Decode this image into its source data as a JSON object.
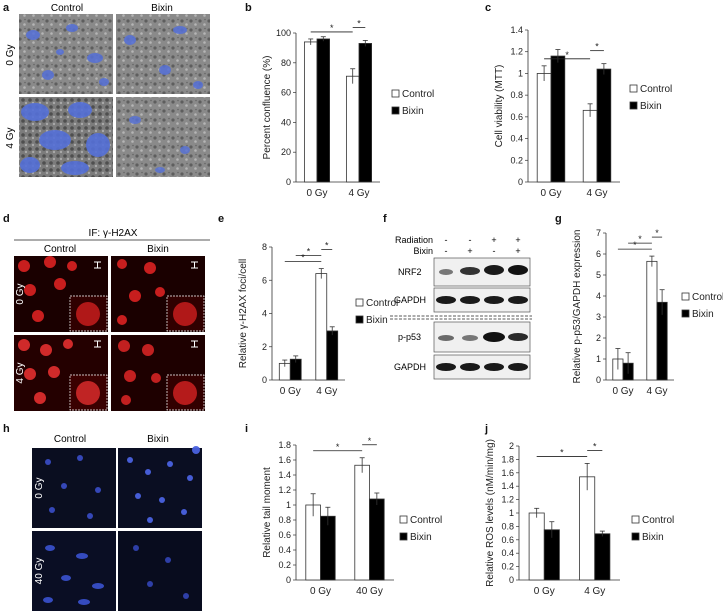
{
  "panel_letters": [
    "a",
    "b",
    "c",
    "d",
    "e",
    "f",
    "g",
    "h",
    "i",
    "j"
  ],
  "micrographs": {
    "a": {
      "col_labels": [
        "Control",
        "Bixin"
      ],
      "row_labels": [
        "0 Gy",
        "4 Gy"
      ]
    },
    "d": {
      "title": "IF: γ-H2AX",
      "col_labels": [
        "Control",
        "Bixin"
      ],
      "row_labels": [
        "0 Gy",
        "4 Gy"
      ]
    },
    "h": {
      "col_labels": [
        "Control",
        "Bixin"
      ],
      "row_labels": [
        "0 Gy",
        "40 Gy"
      ]
    }
  },
  "western_blot": {
    "header_labels": [
      "Radiation",
      "Bixin"
    ],
    "radiation_signs": [
      "-",
      "-",
      "+",
      "+"
    ],
    "bixin_signs": [
      "-",
      "+",
      "-",
      "+"
    ],
    "bands": [
      "NRF2",
      "GAPDH",
      "p-p53",
      "GAPDH"
    ]
  },
  "colors": {
    "control": "#ffffff",
    "bixin": "#000000",
    "stroke": "#333333",
    "overlay_blue": "#5570d8"
  },
  "chart_data": [
    {
      "panel": "b",
      "type": "bar",
      "categories": [
        "0 Gy",
        "4 Gy"
      ],
      "series": [
        {
          "name": "Control",
          "values": [
            94,
            71
          ],
          "errors": [
            2,
            5
          ]
        },
        {
          "name": "Bixin",
          "values": [
            96,
            93
          ],
          "errors": [
            1.5,
            2
          ]
        }
      ],
      "ylabel": "Percent confluence (%)",
      "ylim": [
        0,
        100
      ],
      "yticks": [
        "0",
        "20",
        "40",
        "60",
        "80",
        "100"
      ],
      "significance": [
        {
          "from": [
            0,
            0
          ],
          "to": [
            1,
            0
          ],
          "label": "*"
        },
        {
          "from": [
            1,
            0
          ],
          "to": [
            1,
            1
          ],
          "label": "*"
        }
      ],
      "legend": "right"
    },
    {
      "panel": "c",
      "type": "bar",
      "categories": [
        "0 Gy",
        "4 Gy"
      ],
      "series": [
        {
          "name": "Control",
          "values": [
            1.0,
            0.66
          ],
          "errors": [
            0.07,
            0.06
          ]
        },
        {
          "name": "Bixin",
          "values": [
            1.16,
            1.04
          ],
          "errors": [
            0.06,
            0.05
          ]
        }
      ],
      "ylabel": "Cell viability (MTT)",
      "ylim": [
        0,
        1.4
      ],
      "yticks": [
        "0",
        "0.2",
        "0.4",
        "0.6",
        "0.8",
        "1",
        "1.2",
        "1.4"
      ],
      "significance": [
        {
          "from": [
            0,
            0
          ],
          "to": [
            1,
            0
          ],
          "label": "*"
        },
        {
          "from": [
            1,
            0
          ],
          "to": [
            1,
            1
          ],
          "label": "*"
        }
      ],
      "legend": "right"
    },
    {
      "panel": "e",
      "type": "bar",
      "categories": [
        "0 Gy",
        "4 Gy"
      ],
      "series": [
        {
          "name": "Control",
          "values": [
            1.0,
            6.4
          ],
          "errors": [
            0.2,
            0.3
          ]
        },
        {
          "name": "Bixin",
          "values": [
            1.25,
            2.95
          ],
          "errors": [
            0.2,
            0.25
          ]
        }
      ],
      "ylabel": "Relative γ-H2AX foci/cell",
      "ylim": [
        0,
        8
      ],
      "yticks": [
        "0",
        "2",
        "4",
        "6",
        "8"
      ],
      "significance": [
        {
          "from": [
            0,
            0
          ],
          "to": [
            1,
            0
          ],
          "label": "*"
        },
        {
          "from": [
            0,
            1
          ],
          "to": [
            1,
            0
          ],
          "label": "*"
        },
        {
          "from": [
            1,
            0
          ],
          "to": [
            1,
            1
          ],
          "label": "*"
        }
      ],
      "legend": "right"
    },
    {
      "panel": "g",
      "type": "bar",
      "categories": [
        "0 Gy",
        "4 Gy"
      ],
      "series": [
        {
          "name": "Control",
          "values": [
            1.0,
            5.65
          ],
          "errors": [
            0.5,
            0.25
          ]
        },
        {
          "name": "Bixin",
          "values": [
            0.8,
            3.7
          ],
          "errors": [
            0.5,
            0.6
          ]
        }
      ],
      "ylabel": "Relative p-p53/GAPDH expression",
      "ylim": [
        0,
        7
      ],
      "yticks": [
        "0",
        "1",
        "2",
        "3",
        "4",
        "5",
        "6",
        "7"
      ],
      "significance": [
        {
          "from": [
            0,
            0
          ],
          "to": [
            1,
            0
          ],
          "label": "*"
        },
        {
          "from": [
            0,
            1
          ],
          "to": [
            1,
            0
          ],
          "label": "*"
        },
        {
          "from": [
            1,
            0
          ],
          "to": [
            1,
            1
          ],
          "label": "*"
        }
      ],
      "legend": "right"
    },
    {
      "panel": "i",
      "type": "bar",
      "categories": [
        "0 Gy",
        "40 Gy"
      ],
      "series": [
        {
          "name": "Control",
          "values": [
            1.0,
            1.53
          ],
          "errors": [
            0.15,
            0.1
          ]
        },
        {
          "name": "Bixin",
          "values": [
            0.85,
            1.08
          ],
          "errors": [
            0.12,
            0.08
          ]
        }
      ],
      "ylabel": "Relative tail moment",
      "ylim": [
        0,
        1.8
      ],
      "yticks": [
        "0",
        "0.2",
        "0.4",
        "0.6",
        "0.8",
        "1",
        "1.2",
        "1.4",
        "1.6",
        "1.8"
      ],
      "significance": [
        {
          "from": [
            0,
            0
          ],
          "to": [
            1,
            0
          ],
          "label": "*"
        },
        {
          "from": [
            1,
            0
          ],
          "to": [
            1,
            1
          ],
          "label": "*"
        }
      ],
      "legend": "right"
    },
    {
      "panel": "j",
      "type": "bar",
      "categories": [
        "0 Gy",
        "4 Gy"
      ],
      "series": [
        {
          "name": "Control",
          "values": [
            1.0,
            1.54
          ],
          "errors": [
            0.07,
            0.2
          ]
        },
        {
          "name": "Bixin",
          "values": [
            0.75,
            0.69
          ],
          "errors": [
            0.12,
            0.04
          ]
        }
      ],
      "ylabel": "Relative ROS levels (nM/min/mg)",
      "ylim": [
        0,
        2
      ],
      "yticks": [
        "0",
        "0.2",
        "0.4",
        "0.6",
        "0.8",
        "1",
        "1.2",
        "1.4",
        "1.6",
        "1.8",
        "2"
      ],
      "significance": [
        {
          "from": [
            0,
            0
          ],
          "to": [
            1,
            0
          ],
          "label": "*"
        },
        {
          "from": [
            1,
            0
          ],
          "to": [
            1,
            1
          ],
          "label": "*"
        }
      ],
      "legend": "right"
    }
  ]
}
